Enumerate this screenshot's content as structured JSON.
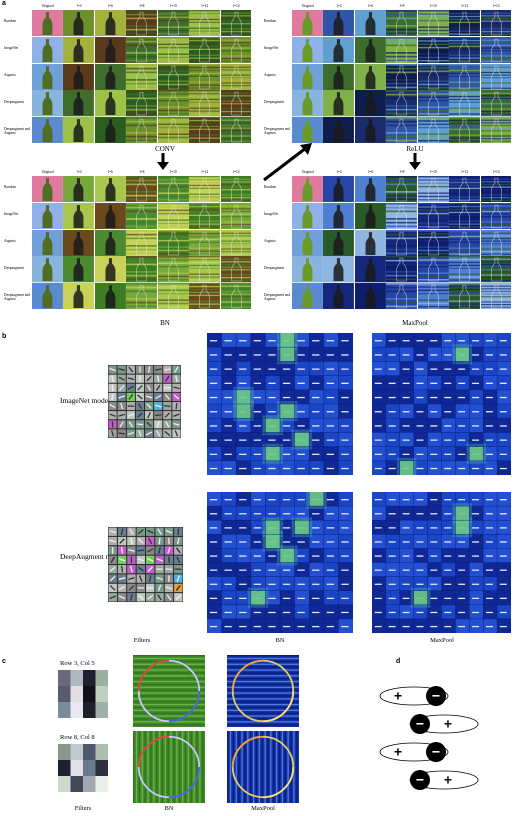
{
  "panels": {
    "a": {
      "letter": "a",
      "columns": [
        "Original",
        "l=4",
        "l=6",
        "l=8",
        "l=10",
        "l=12",
        "l=14"
      ],
      "rows": [
        "Random",
        "ImageNet",
        "Augmix",
        "Deepaugment",
        "Deepaugment and Augmix"
      ],
      "grids": [
        {
          "label": "CONV",
          "palette": [
            "#2b5d1e",
            "#6f8f2a",
            "#a4b13d",
            "#5a3a1a",
            "#3f6e2c",
            "#9cc24a"
          ]
        },
        {
          "label": "ReLU",
          "palette": [
            "#1a2c6b",
            "#2f55a8",
            "#5fa0d0",
            "#3d6d2d",
            "#7fb04a",
            "#0f1d4a"
          ]
        },
        {
          "label": "BN",
          "palette": [
            "#3e7d23",
            "#78a83a",
            "#a9c74e",
            "#6a4a1c",
            "#4b8a2e",
            "#c8d25a"
          ]
        },
        {
          "label": "MaxPool",
          "palette": [
            "#0f1e6b",
            "#2745a7",
            "#4f7fcf",
            "#2a5a2a",
            "#8fb6e0",
            "#15277a"
          ]
        }
      ]
    },
    "b": {
      "letter": "b",
      "rows": [
        {
          "label": "ImageNet model"
        },
        {
          "label": "DeepAugment model"
        }
      ],
      "bottom_labels": {
        "filters": "Filters",
        "bn": "BN",
        "maxpool": "MaxPool"
      }
    },
    "c": {
      "letter": "c",
      "rows": [
        {
          "label": "Row 3, Col 5"
        },
        {
          "label": "Row 8, Col 8"
        }
      ],
      "bottom_labels": {
        "filters": "Filters",
        "bn": "BN",
        "maxpool": "MaxPool"
      }
    },
    "d": {
      "letter": "d",
      "dipoles": [
        {
          "left_sign": "+",
          "right_sign": "−",
          "offset": "left"
        },
        {
          "left_sign": "−",
          "right_sign": "+",
          "offset": "right"
        },
        {
          "left_sign": "+",
          "right_sign": "−",
          "offset": "left"
        },
        {
          "left_sign": "−",
          "right_sign": "+",
          "offset": "right"
        }
      ]
    }
  },
  "colors": {
    "green_bg": "#3f8a2a",
    "blue_bg": "#1330a8",
    "heat_bg": "#1a3ec0",
    "heat_hot": "#7fd36a",
    "bottle_dark": "#111111"
  }
}
